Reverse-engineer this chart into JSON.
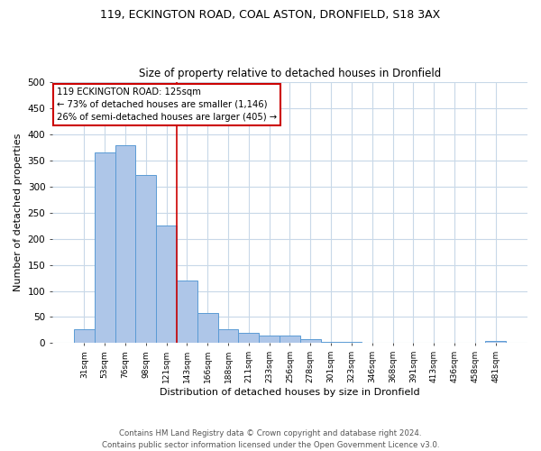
{
  "title1": "119, ECKINGTON ROAD, COAL ASTON, DRONFIELD, S18 3AX",
  "title2": "Size of property relative to detached houses in Dronfield",
  "xlabel": "Distribution of detached houses by size in Dronfield",
  "ylabel": "Number of detached properties",
  "bar_labels": [
    "31sqm",
    "53sqm",
    "76sqm",
    "98sqm",
    "121sqm",
    "143sqm",
    "166sqm",
    "188sqm",
    "211sqm",
    "233sqm",
    "256sqm",
    "278sqm",
    "301sqm",
    "323sqm",
    "346sqm",
    "368sqm",
    "391sqm",
    "413sqm",
    "436sqm",
    "458sqm",
    "481sqm"
  ],
  "bar_values": [
    27,
    365,
    380,
    322,
    225,
    120,
    58,
    27,
    20,
    15,
    15,
    7,
    3,
    2,
    1,
    1,
    1,
    0,
    0,
    0,
    5
  ],
  "bar_color": "#aec6e8",
  "bar_edge_color": "#5b9bd5",
  "grid_color": "#c8d8e8",
  "annotation_text_line1": "119 ECKINGTON ROAD: 125sqm",
  "annotation_text_line2": "← 73% of detached houses are smaller (1,146)",
  "annotation_text_line3": "26% of semi-detached houses are larger (405) →",
  "annotation_box_color": "#ffffff",
  "annotation_box_edge": "#cc0000",
  "red_line_color": "#cc0000",
  "footer_text": "Contains HM Land Registry data © Crown copyright and database right 2024.\nContains public sector information licensed under the Open Government Licence v3.0.",
  "ylim": [
    0,
    500
  ],
  "yticks": [
    0,
    50,
    100,
    150,
    200,
    250,
    300,
    350,
    400,
    450,
    500
  ]
}
